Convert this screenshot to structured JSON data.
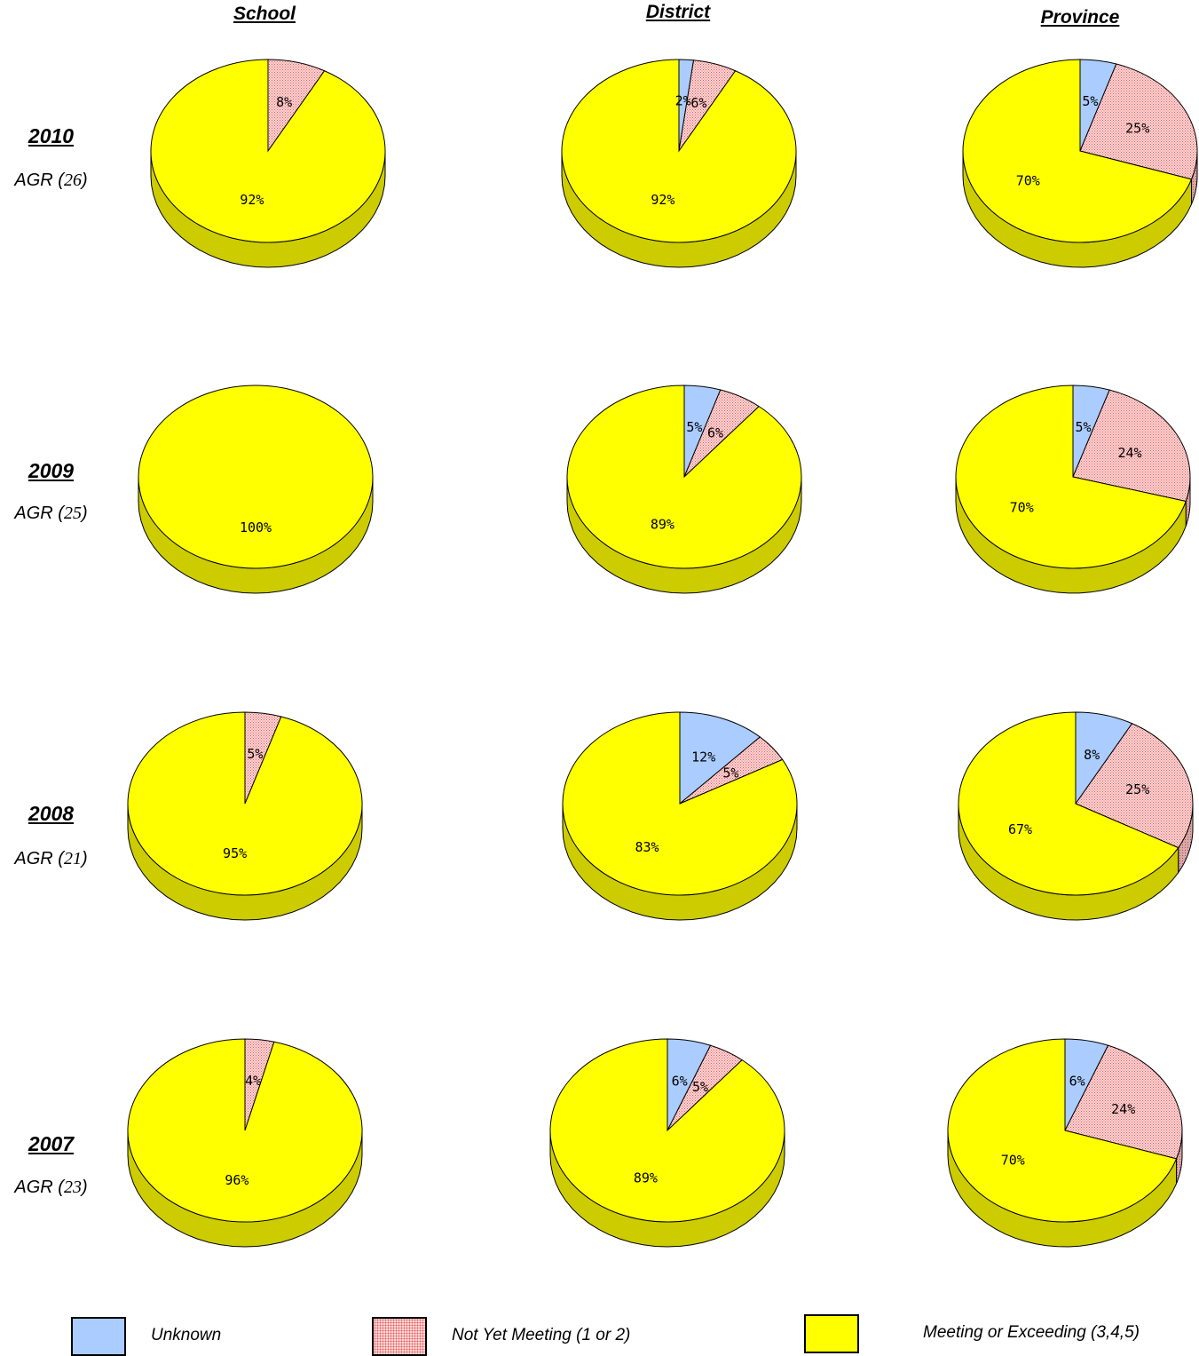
{
  "columns": [
    "School",
    "District",
    "Province"
  ],
  "rows": [
    {
      "year": "2010",
      "agr_prefix": "AGR (",
      "agr_n": "26",
      "agr_suffix": ")"
    },
    {
      "year": "2009",
      "agr_prefix": "AGR (",
      "agr_n": "25",
      "agr_suffix": ")"
    },
    {
      "year": "2008",
      "agr_prefix": "AGR (",
      "agr_n": "21",
      "agr_suffix": ")"
    },
    {
      "year": "2007",
      "agr_prefix": "AGR (",
      "agr_n": "23",
      "agr_suffix": ")"
    }
  ],
  "legend": [
    {
      "label": "Unknown",
      "color": "#aaccff"
    },
    {
      "label": "Not Yet Meeting (1 or 2)",
      "color": "#ffd6d6"
    },
    {
      "label": "Meeting or Exceeding (3,4,5)",
      "color": "#ffff00"
    }
  ],
  "colors": {
    "unknown": "#aaccff",
    "not_yet": "#ffd6d6",
    "not_yet_dots": "#e06060",
    "meeting": "#ffff00",
    "meeting_side": "#cccc00",
    "unknown_side": "#8aa6d6",
    "not_yet_side": "#d9a8a8"
  },
  "chart_data": [
    {
      "type": "pie",
      "row": "2010",
      "column": "School",
      "values": {
        "Unknown": 0,
        "Not Yet Meeting (1 or 2)": 8,
        "Meeting or Exceeding (3,4,5)": 92
      },
      "labels": [
        "",
        "8%",
        "92%"
      ]
    },
    {
      "type": "pie",
      "row": "2010",
      "column": "District",
      "values": {
        "Unknown": 2,
        "Not Yet Meeting (1 or 2)": 6,
        "Meeting or Exceeding (3,4,5)": 92
      },
      "labels": [
        "2%",
        "6%",
        "92%"
      ]
    },
    {
      "type": "pie",
      "row": "2010",
      "column": "Province",
      "values": {
        "Unknown": 5,
        "Not Yet Meeting (1 or 2)": 25,
        "Meeting or Exceeding (3,4,5)": 70
      },
      "labels": [
        "5%",
        "25%",
        "70%"
      ]
    },
    {
      "type": "pie",
      "row": "2009",
      "column": "School",
      "values": {
        "Unknown": 0,
        "Not Yet Meeting (1 or 2)": 0,
        "Meeting or Exceeding (3,4,5)": 100
      },
      "labels": [
        "",
        "",
        "100%"
      ]
    },
    {
      "type": "pie",
      "row": "2009",
      "column": "District",
      "values": {
        "Unknown": 5,
        "Not Yet Meeting (1 or 2)": 6,
        "Meeting or Exceeding (3,4,5)": 89
      },
      "labels": [
        "5%",
        "6%",
        "89%"
      ]
    },
    {
      "type": "pie",
      "row": "2009",
      "column": "Province",
      "values": {
        "Unknown": 5,
        "Not Yet Meeting (1 or 2)": 24,
        "Meeting or Exceeding (3,4,5)": 70
      },
      "labels": [
        "5%",
        "24%",
        "70%"
      ]
    },
    {
      "type": "pie",
      "row": "2008",
      "column": "School",
      "values": {
        "Unknown": 0,
        "Not Yet Meeting (1 or 2)": 5,
        "Meeting or Exceeding (3,4,5)": 95
      },
      "labels": [
        "",
        "5%",
        "95%"
      ]
    },
    {
      "type": "pie",
      "row": "2008",
      "column": "District",
      "values": {
        "Unknown": 12,
        "Not Yet Meeting (1 or 2)": 5,
        "Meeting or Exceeding (3,4,5)": 83
      },
      "labels": [
        "12%",
        "5%",
        "83%"
      ]
    },
    {
      "type": "pie",
      "row": "2008",
      "column": "Province",
      "values": {
        "Unknown": 8,
        "Not Yet Meeting (1 or 2)": 25,
        "Meeting or Exceeding (3,4,5)": 67
      },
      "labels": [
        "8%",
        "25%",
        "67%"
      ]
    },
    {
      "type": "pie",
      "row": "2007",
      "column": "School",
      "values": {
        "Unknown": 0,
        "Not Yet Meeting (1 or 2)": 4,
        "Meeting or Exceeding (3,4,5)": 96
      },
      "labels": [
        "",
        "4%",
        "96%"
      ]
    },
    {
      "type": "pie",
      "row": "2007",
      "column": "District",
      "values": {
        "Unknown": 6,
        "Not Yet Meeting (1 or 2)": 5,
        "Meeting or Exceeding (3,4,5)": 89
      },
      "labels": [
        "6%",
        "5%",
        "89%"
      ]
    },
    {
      "type": "pie",
      "row": "2007",
      "column": "Province",
      "values": {
        "Unknown": 6,
        "Not Yet Meeting (1 or 2)": 24,
        "Meeting or Exceeding (3,4,5)": 70
      },
      "labels": [
        "6%",
        "24%",
        "70%"
      ]
    }
  ]
}
